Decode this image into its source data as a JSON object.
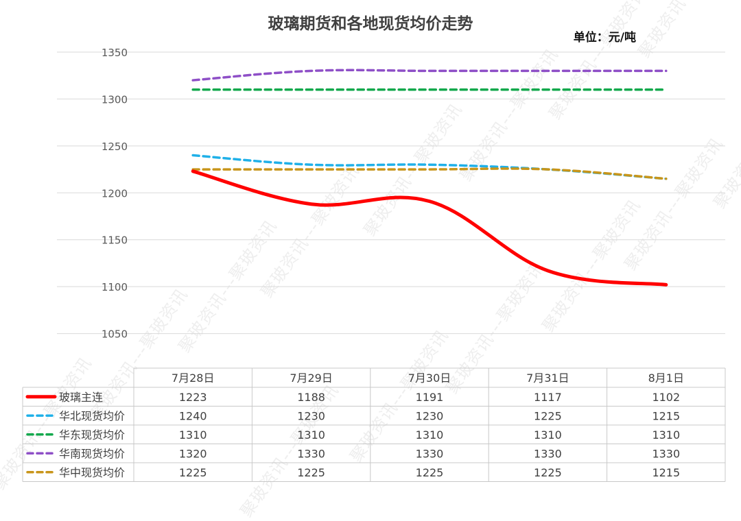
{
  "chart_data": {
    "type": "line",
    "title": "玻璃期货和各地现货均价走势",
    "unit_label": "单位：元/吨",
    "ylim": [
      1000,
      1350
    ],
    "yticks": [
      1050,
      1100,
      1150,
      1200,
      1250,
      1300,
      1350
    ],
    "categories": [
      "7月28日",
      "7月29日",
      "7月30日",
      "7月31日",
      "8月1日"
    ],
    "grid": true,
    "legend_placement": "data-table",
    "series": [
      {
        "name": "玻璃主连",
        "values": [
          1223,
          1188,
          1191,
          1117,
          1102
        ],
        "color": "#ff0000",
        "style": "solid"
      },
      {
        "name": "华北现货均价",
        "values": [
          1240,
          1230,
          1230,
          1225,
          1215
        ],
        "color": "#1fb0e8",
        "style": "dashed"
      },
      {
        "name": "华东现货均价",
        "values": [
          1310,
          1310,
          1310,
          1310,
          1310
        ],
        "color": "#13a84c",
        "style": "dashed"
      },
      {
        "name": "华南现货均价",
        "values": [
          1320,
          1330,
          1330,
          1330,
          1330
        ],
        "color": "#8e4fc7",
        "style": "dashed"
      },
      {
        "name": "华中现货均价",
        "values": [
          1225,
          1225,
          1225,
          1225,
          1215
        ],
        "color": "#c8951a",
        "style": "dashed"
      }
    ]
  },
  "watermark": "聚玻资讯"
}
